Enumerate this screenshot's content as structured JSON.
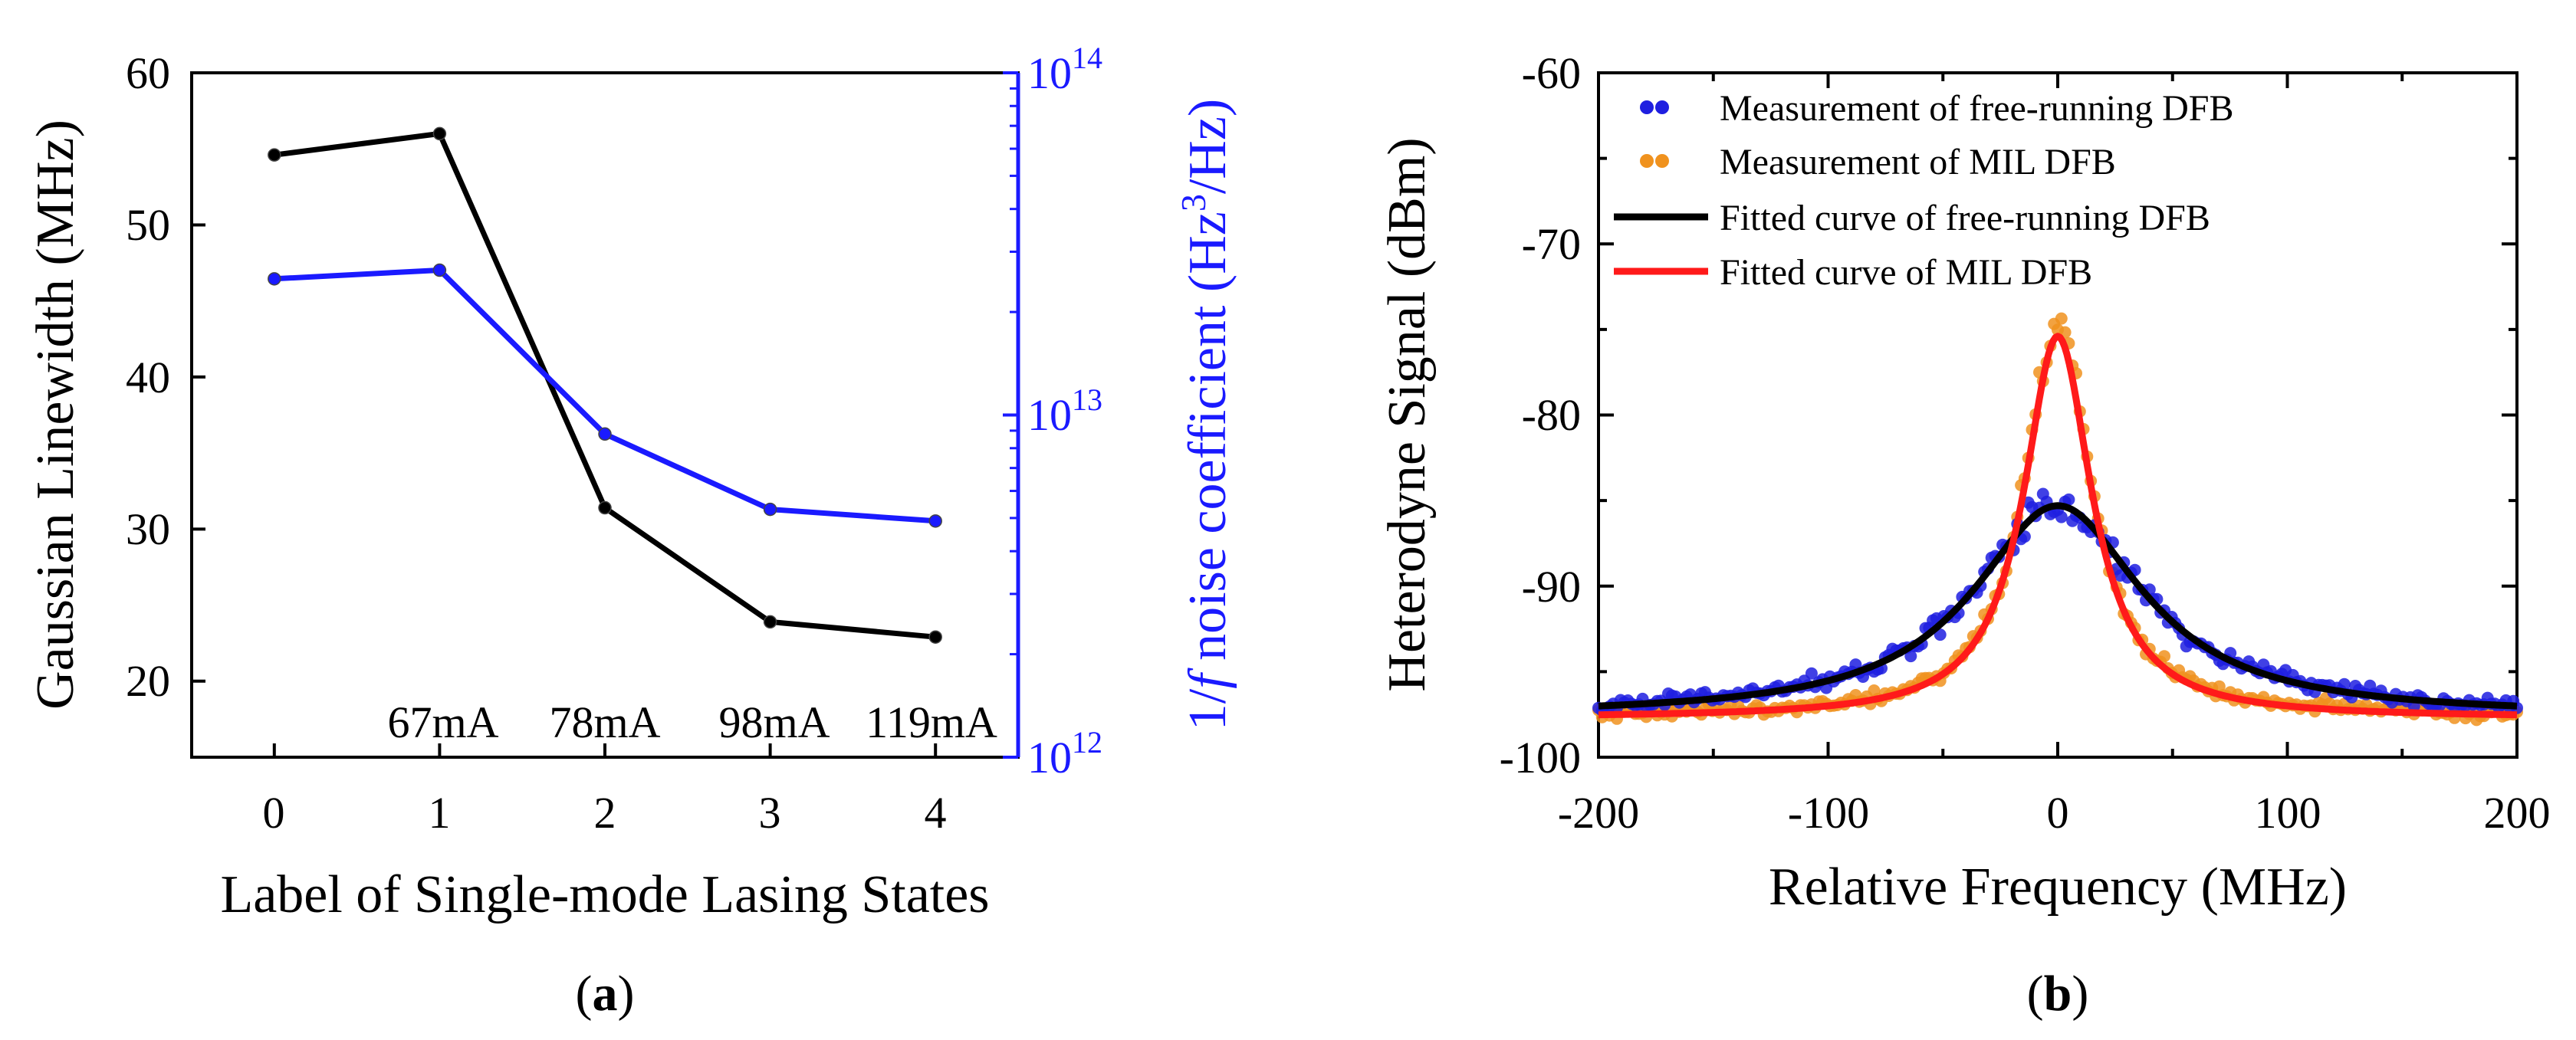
{
  "chart_data": [
    {
      "type": "line",
      "panel": "a",
      "caption_open": "(",
      "caption_letter": "a",
      "caption_close": ")",
      "xlabel": "Label of Single-mode Lasing States",
      "ylabel": "Gaussian Linewidth (MHz)",
      "y2label": {
        "prefix": "1/",
        "f": "f",
        "middle": " noise coefficient (Hz",
        "sup": "3",
        "suffix": "/Hz)"
      },
      "xlim": [
        -0.5,
        4.5
      ],
      "ylim": [
        15,
        60
      ],
      "y2lim": [
        1000000000000.0,
        100000000000000.0
      ],
      "y2scale": "log",
      "xticks": [
        "0",
        "1",
        "2",
        "3",
        "4"
      ],
      "yticks": [
        "20",
        "30",
        "40",
        "50",
        "60"
      ],
      "y2ticks": [
        {
          "base": "10",
          "exp": "12"
        },
        {
          "base": "10",
          "exp": "13"
        },
        {
          "base": "10",
          "exp": "14"
        }
      ],
      "x": [
        0,
        1,
        2,
        3,
        4
      ],
      "series": [
        {
          "name": "Gaussian Linewidth",
          "axis": "left",
          "color": "#000000",
          "values": [
            54.6,
            56.0,
            31.4,
            23.9,
            22.9
          ]
        },
        {
          "name": "1/f noise coefficient",
          "axis": "right",
          "color": "#1a1aff",
          "values": [
            25000000000000.0,
            26500000000000.0,
            8800000000000.0,
            5300000000000.0,
            4900000000000.0
          ]
        }
      ],
      "annotations": [
        {
          "text": "67mA",
          "x": 1
        },
        {
          "text": "78mA",
          "x": 2
        },
        {
          "text": "98mA",
          "x": 3
        },
        {
          "text": "119mA",
          "x": 4
        }
      ]
    },
    {
      "type": "scatter",
      "panel": "b",
      "caption_open": "(",
      "caption_letter": "b",
      "caption_close": ")",
      "xlabel": "Relative Frequency (MHz)",
      "ylabel": "Heterodyne Signal (dBm)",
      "xlim": [
        -200,
        200
      ],
      "ylim": [
        -100,
        -60
      ],
      "xticks": [
        "-200",
        "-100",
        "0",
        "100",
        "200"
      ],
      "yticks": [
        "-100",
        "-90",
        "-80",
        "-70",
        "-60"
      ],
      "legend_position": "top-left",
      "series": [
        {
          "name": "Measurement of free-running DFB",
          "kind": "scatter",
          "color": "#1f1fe0",
          "baseline": -97.5,
          "peak": -85.3,
          "x0": 0,
          "hwhm": 45
        },
        {
          "name": "Measurement of MIL DFB",
          "kind": "scatter",
          "color": "#f0921e",
          "baseline": -97.6,
          "peak": -74.8,
          "x0": 0,
          "hwhm": 18
        },
        {
          "name": "Fitted curve of free-running DFB",
          "kind": "line",
          "color": "#000000",
          "baseline": -97.6,
          "peak": -85.3,
          "x0": 0,
          "hwhm": 45
        },
        {
          "name": "Fitted curve of MIL DFB",
          "kind": "line",
          "color": "#ff1a1a",
          "baseline": -97.7,
          "peak": -75.4,
          "x0": 0,
          "hwhm": 18
        }
      ]
    }
  ]
}
